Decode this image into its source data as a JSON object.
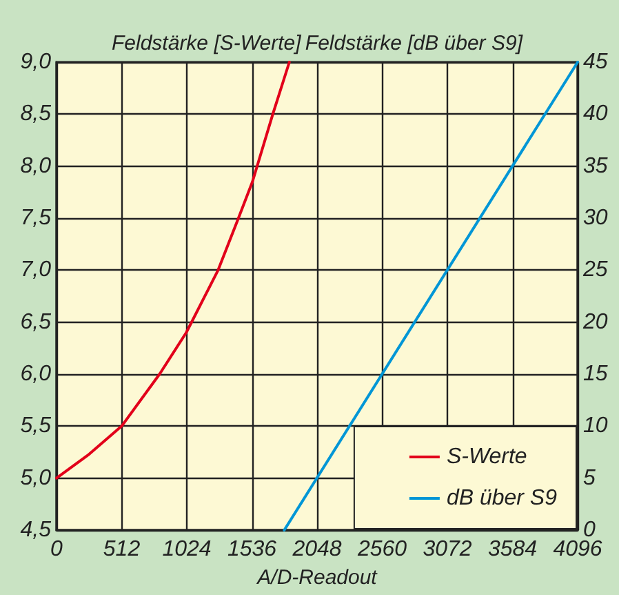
{
  "chart_data": {
    "type": "line",
    "xlabel": "A/D-Readout",
    "ylabel": "Feldstärke [S-Werte]",
    "y2label": "Feldstärke [dB über S9]",
    "xlim": [
      0,
      4096
    ],
    "xticks": [
      0,
      512,
      1024,
      1536,
      2048,
      2560,
      3072,
      3584,
      4096
    ],
    "ylim": [
      4.5,
      9
    ],
    "yticks": [
      {
        "value": 4.5,
        "label": "4,5"
      },
      {
        "value": 5,
        "label": "5,0"
      },
      {
        "value": 5.5,
        "label": "5,5"
      },
      {
        "value": 6,
        "label": "6,0"
      },
      {
        "value": 6.5,
        "label": "6,5"
      },
      {
        "value": 7,
        "label": "7,0"
      },
      {
        "value": 7.5,
        "label": "7,5"
      },
      {
        "value": 8,
        "label": "8,0"
      },
      {
        "value": 8.5,
        "label": "8,5"
      },
      {
        "value": 9,
        "label": "9,0"
      }
    ],
    "y2lim": [
      0,
      45
    ],
    "y2ticks": [
      0,
      5,
      10,
      15,
      20,
      25,
      30,
      35,
      40,
      45
    ],
    "series": [
      {
        "name": "S-Werte",
        "color": "#e2001a",
        "x": [
          0,
          256,
          512,
          810,
          1020,
          1270,
          1430,
          1540,
          1700,
          1830
        ],
        "values": [
          5.0,
          5.23,
          5.5,
          6.0,
          6.4,
          7.0,
          7.5,
          7.85,
          8.5,
          9.0
        ]
      },
      {
        "name": "dB über S9",
        "color": "#0096d6",
        "axis": "y2",
        "x": [
          1790,
          4096
        ],
        "values": [
          0,
          45
        ]
      }
    ],
    "grid": true,
    "legend": "bottom right",
    "marker": "none",
    "line_style": "solid"
  }
}
